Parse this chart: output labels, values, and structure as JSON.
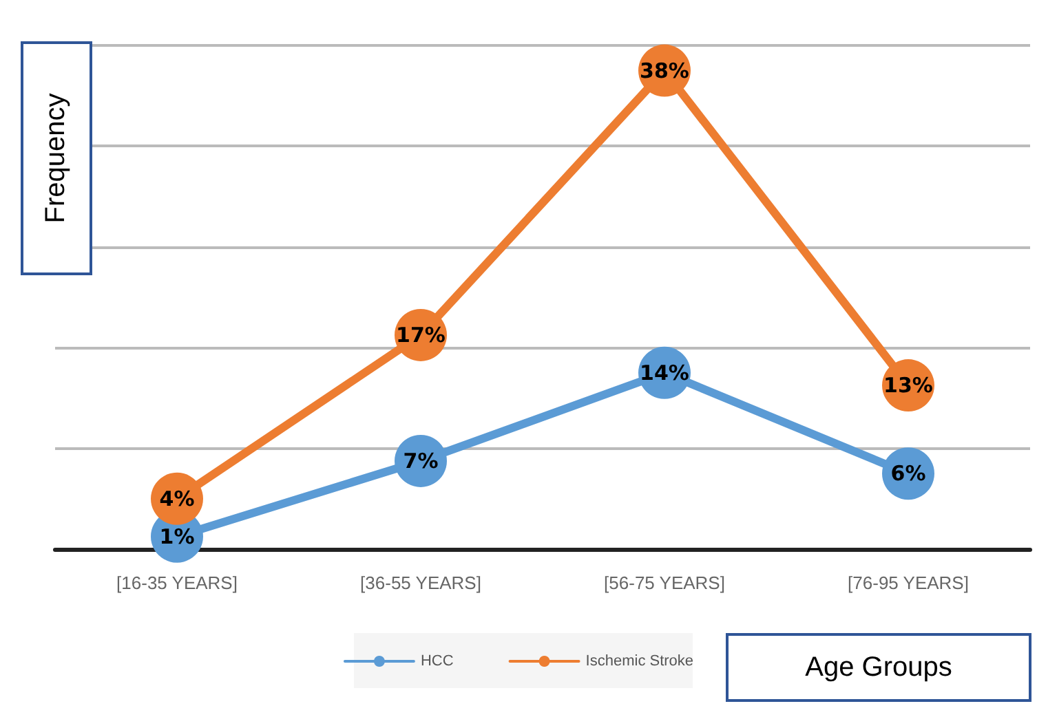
{
  "chart_data": {
    "type": "line",
    "xlabel": "Age Groups",
    "ylabel": "Frequency",
    "categories": [
      "[16-35 YEARS]",
      "[36-55 YEARS]",
      "[56-75 YEARS]",
      "[76-95 YEARS]"
    ],
    "series": [
      {
        "name": "HCC",
        "color": "#5b9bd5",
        "values": [
          1,
          7,
          14,
          6
        ],
        "value_labels": [
          "1%",
          "7%",
          "14%",
          "6%"
        ]
      },
      {
        "name": "Ischemic Stroke",
        "color": "#ed7d31",
        "values": [
          4,
          17,
          38,
          13
        ],
        "value_labels": [
          "4%",
          "17%",
          "38%",
          "13%"
        ]
      }
    ],
    "ylim": [
      0,
      40
    ],
    "yticks": [
      {
        "value": 0,
        "label": null
      },
      {
        "value": 8,
        "label": null
      },
      {
        "value": 16,
        "label": null
      },
      {
        "value": 24,
        "label": null
      },
      {
        "value": 32,
        "label": null
      },
      {
        "value": 40,
        "label": null
      }
    ],
    "tick_labels": "x",
    "grid": "y",
    "legend": "bottom",
    "marker": "circle",
    "line_style": "solid"
  }
}
